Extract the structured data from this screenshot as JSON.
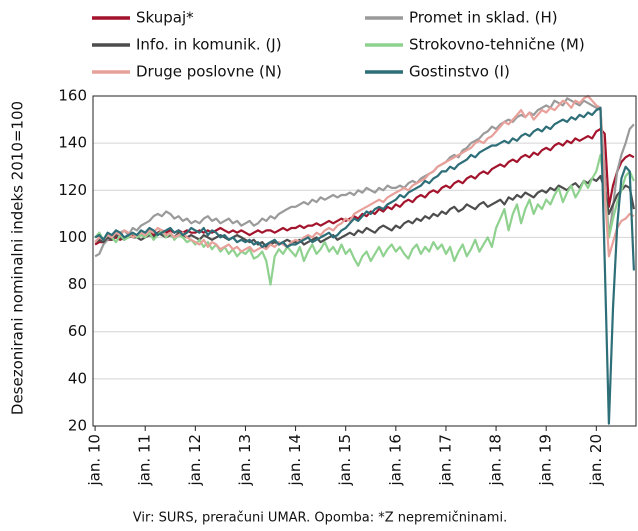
{
  "chart_data": {
    "type": "line",
    "ylabel": "Desezonirani nominalni indeks 2010=100",
    "note": "Vir: SURS, preračuni UMAR. Opomba: *Z nepremičninami.",
    "ylim": [
      20,
      160
    ],
    "yticks": [
      20,
      40,
      60,
      80,
      100,
      120,
      140,
      160
    ],
    "grid": true,
    "categories": [
      "jan. 10",
      null,
      null,
      null,
      null,
      null,
      null,
      null,
      null,
      null,
      null,
      null,
      "jan. 11",
      null,
      null,
      null,
      null,
      null,
      null,
      null,
      null,
      null,
      null,
      null,
      "jan. 12",
      null,
      null,
      null,
      null,
      null,
      null,
      null,
      null,
      null,
      null,
      null,
      "jan. 13",
      null,
      null,
      null,
      null,
      null,
      null,
      null,
      null,
      null,
      null,
      null,
      "jan. 14",
      null,
      null,
      null,
      null,
      null,
      null,
      null,
      null,
      null,
      null,
      null,
      "jan. 15",
      null,
      null,
      null,
      null,
      null,
      null,
      null,
      null,
      null,
      null,
      null,
      "jan. 16",
      null,
      null,
      null,
      null,
      null,
      null,
      null,
      null,
      null,
      null,
      null,
      "jan. 17",
      null,
      null,
      null,
      null,
      null,
      null,
      null,
      null,
      null,
      null,
      null,
      "jan. 18",
      null,
      null,
      null,
      null,
      null,
      null,
      null,
      null,
      null,
      null,
      null,
      "jan. 19",
      null,
      null,
      null,
      null,
      null,
      null,
      null,
      null,
      null,
      null,
      null,
      "jan. 20",
      null,
      null,
      null,
      null,
      null,
      null,
      null,
      null,
      null
    ],
    "series": [
      {
        "name": "Skupaj*",
        "color": "#a3142c",
        "values": [
          97,
          98,
          98,
          99,
          99,
          100,
          99,
          100,
          100,
          101,
          100,
          101,
          101,
          102,
          101,
          102,
          103,
          102,
          103,
          102,
          103,
          102,
          103,
          102,
          102,
          103,
          102,
          103,
          102,
          103,
          104,
          103,
          102,
          103,
          102,
          103,
          102,
          101,
          102,
          103,
          102,
          103,
          103,
          102,
          103,
          104,
          103,
          104,
          104,
          105,
          104,
          105,
          105,
          106,
          105,
          106,
          107,
          106,
          107,
          108,
          107,
          108,
          109,
          108,
          110,
          109,
          111,
          110,
          112,
          111,
          113,
          112,
          114,
          113,
          115,
          116,
          115,
          117,
          118,
          117,
          119,
          120,
          119,
          121,
          122,
          121,
          123,
          124,
          123,
          125,
          126,
          125,
          127,
          128,
          127,
          129,
          130,
          131,
          130,
          132,
          133,
          132,
          134,
          135,
          134,
          136,
          135,
          137,
          138,
          137,
          139,
          140,
          139,
          141,
          140,
          142,
          141,
          142,
          143,
          142,
          145,
          146,
          144,
          113,
          122,
          128,
          132,
          134,
          135,
          134
        ]
      },
      {
        "name": "Promet in sklad. (H)",
        "color": "#9a9a9a",
        "values": [
          92,
          93,
          97,
          99,
          100,
          101,
          102,
          103,
          101,
          104,
          103,
          105,
          106,
          107,
          109,
          110,
          109,
          111,
          110,
          108,
          109,
          107,
          108,
          106,
          107,
          106,
          108,
          109,
          107,
          108,
          106,
          107,
          108,
          106,
          107,
          105,
          106,
          107,
          105,
          106,
          108,
          107,
          109,
          108,
          110,
          111,
          112,
          113,
          113,
          114,
          115,
          114,
          116,
          115,
          117,
          116,
          117,
          118,
          117,
          118,
          118,
          119,
          118,
          120,
          119,
          121,
          120,
          119,
          121,
          120,
          122,
          121,
          121,
          122,
          121,
          123,
          124,
          123,
          125,
          126,
          127,
          128,
          130,
          131,
          132,
          134,
          135,
          134,
          137,
          138,
          140,
          141,
          142,
          144,
          145,
          147,
          146,
          148,
          149,
          150,
          149,
          151,
          152,
          151,
          153,
          152,
          154,
          155,
          156,
          155,
          158,
          157,
          156,
          159,
          158,
          157,
          156,
          158,
          157,
          156,
          155,
          154,
          127,
          100,
          113,
          128,
          135,
          140,
          146,
          148
        ]
      },
      {
        "name": "Info. in komunik. (J)",
        "color": "#4d4d4d",
        "values": [
          98,
          99,
          98,
          100,
          99,
          101,
          100,
          99,
          101,
          100,
          100,
          99,
          100,
          101,
          100,
          102,
          101,
          100,
          101,
          100,
          102,
          101,
          100,
          101,
          100,
          99,
          101,
          100,
          99,
          100,
          101,
          100,
          99,
          100,
          101,
          100,
          99,
          98,
          99,
          97,
          98,
          96,
          97,
          98,
          97,
          98,
          99,
          98,
          98,
          99,
          97,
          98,
          99,
          100,
          98,
          99,
          100,
          101,
          99,
          100,
          101,
          102,
          101,
          103,
          102,
          104,
          103,
          102,
          104,
          105,
          104,
          103,
          105,
          104,
          106,
          107,
          106,
          108,
          107,
          109,
          108,
          110,
          109,
          111,
          110,
          112,
          113,
          111,
          112,
          114,
          113,
          112,
          114,
          115,
          113,
          114,
          115,
          116,
          114,
          117,
          116,
          118,
          117,
          119,
          118,
          117,
          119,
          120,
          119,
          121,
          120,
          122,
          121,
          120,
          122,
          123,
          121,
          124,
          123,
          125,
          124,
          126,
          120,
          110,
          114,
          118,
          120,
          122,
          121,
          112
        ]
      },
      {
        "name": "Strokovno-tehnične (M)",
        "color": "#8fd18f",
        "values": [
          100,
          102,
          99,
          101,
          100,
          98,
          101,
          99,
          100,
          102,
          100,
          101,
          100,
          102,
          99,
          101,
          103,
          100,
          102,
          99,
          101,
          100,
          98,
          99,
          97,
          99,
          96,
          98,
          95,
          97,
          94,
          96,
          93,
          95,
          92,
          94,
          93,
          95,
          91,
          92,
          94,
          90,
          80,
          92,
          95,
          93,
          96,
          94,
          92,
          96,
          90,
          94,
          97,
          93,
          95,
          98,
          94,
          96,
          93,
          97,
          93,
          95,
          91,
          88,
          92,
          94,
          90,
          93,
          96,
          92,
          95,
          97,
          94,
          96,
          93,
          91,
          95,
          97,
          93,
          96,
          94,
          98,
          95,
          97,
          93,
          96,
          90,
          94,
          97,
          92,
          95,
          99,
          94,
          97,
          100,
          96,
          104,
          108,
          112,
          103,
          110,
          114,
          106,
          112,
          116,
          110,
          114,
          112,
          116,
          114,
          118,
          121,
          115,
          119,
          122,
          117,
          120,
          124,
          121,
          125,
          128,
          135,
          120,
          100,
          108,
          115,
          120,
          126,
          128,
          124
        ]
      },
      {
        "name": "Druge poslovne (N)",
        "color": "#e8a09a",
        "values": [
          98,
          100,
          99,
          101,
          100,
          102,
          101,
          103,
          102,
          100,
          101,
          102,
          101,
          103,
          102,
          104,
          103,
          101,
          102,
          100,
          101,
          102,
          100,
          99,
          98,
          97,
          99,
          96,
          98,
          97,
          95,
          96,
          97,
          95,
          96,
          94,
          95,
          96,
          94,
          95,
          96,
          95,
          97,
          96,
          98,
          97,
          96,
          98,
          99,
          98,
          100,
          101,
          100,
          102,
          101,
          103,
          104,
          103,
          105,
          106,
          108,
          107,
          110,
          111,
          112,
          113,
          114,
          115,
          116,
          115,
          117,
          118,
          119,
          120,
          121,
          120,
          122,
          123,
          124,
          125,
          127,
          128,
          130,
          131,
          132,
          133,
          134,
          135,
          136,
          137,
          138,
          140,
          141,
          140,
          142,
          143,
          145,
          147,
          149,
          148,
          150,
          152,
          154,
          151,
          153,
          150,
          152,
          154,
          153,
          155,
          154,
          156,
          158,
          157,
          155,
          158,
          157,
          159,
          160,
          158,
          156,
          155,
          120,
          92,
          98,
          104,
          107,
          108,
          110,
          109
        ]
      },
      {
        "name": "Gostinstvo (I)",
        "color": "#2d6e78",
        "values": [
          100,
          101,
          99,
          102,
          101,
          103,
          102,
          100,
          101,
          102,
          101,
          103,
          102,
          104,
          103,
          101,
          102,
          103,
          104,
          102,
          103,
          101,
          102,
          104,
          103,
          102,
          104,
          101,
          103,
          102,
          100,
          101,
          99,
          100,
          98,
          99,
          98,
          99,
          97,
          98,
          96,
          97,
          98,
          99,
          97,
          98,
          96,
          97,
          97,
          98,
          99,
          100,
          98,
          99,
          100,
          101,
          102,
          100,
          101,
          103,
          104,
          106,
          108,
          107,
          109,
          111,
          110,
          112,
          113,
          112,
          114,
          115,
          116,
          118,
          117,
          119,
          120,
          121,
          122,
          124,
          123,
          125,
          126,
          128,
          128,
          130,
          129,
          131,
          132,
          133,
          135,
          134,
          136,
          137,
          138,
          139,
          139,
          140,
          141,
          140,
          142,
          141,
          143,
          144,
          143,
          145,
          146,
          145,
          147,
          146,
          148,
          149,
          150,
          149,
          151,
          150,
          152,
          151,
          153,
          152,
          154,
          155,
          90,
          21,
          70,
          105,
          125,
          130,
          128,
          86
        ]
      }
    ]
  }
}
